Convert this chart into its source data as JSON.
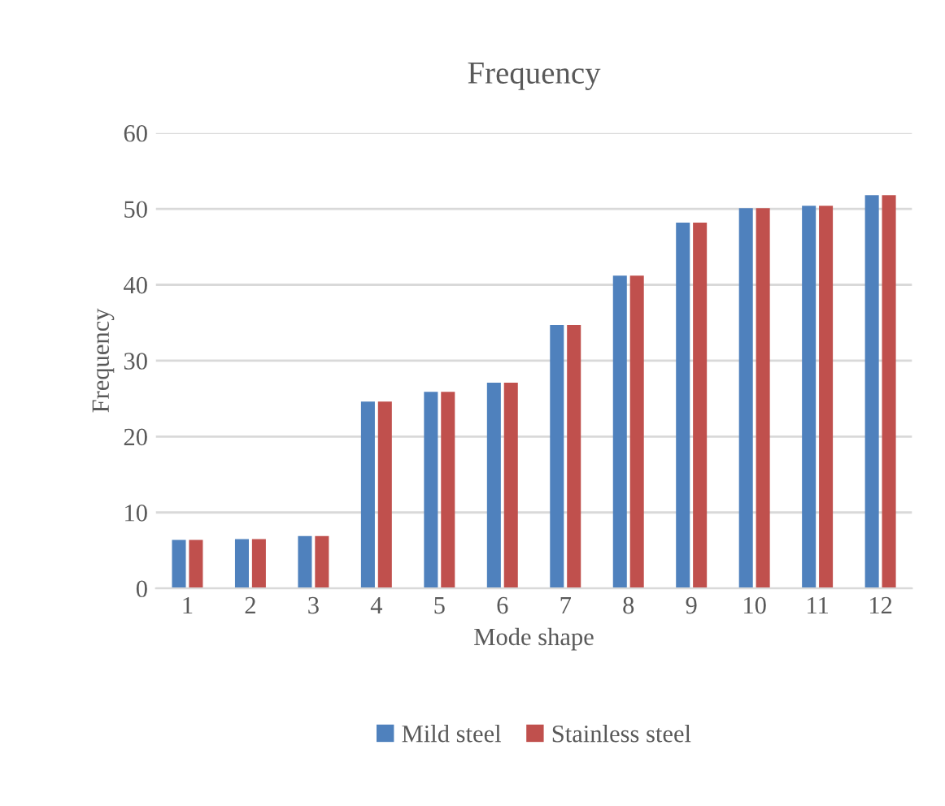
{
  "chart_data": {
    "type": "bar",
    "title": "Frequency",
    "xlabel": "Mode shape",
    "ylabel": "Frequency",
    "categories": [
      "1",
      "2",
      "3",
      "4",
      "5",
      "6",
      "7",
      "8",
      "9",
      "10",
      "11",
      "12"
    ],
    "series": [
      {
        "name": "Mild steel",
        "color": "#4f81bd",
        "values": [
          6.4,
          6.5,
          6.9,
          24.6,
          25.9,
          27.1,
          34.7,
          41.2,
          48.2,
          50.1,
          50.4,
          51.8
        ]
      },
      {
        "name": "Stainless steel",
        "color": "#c0504d",
        "values": [
          6.4,
          6.5,
          6.9,
          24.6,
          25.9,
          27.1,
          34.7,
          41.2,
          48.2,
          50.1,
          50.4,
          51.8
        ]
      }
    ],
    "ylim": [
      0,
      60
    ],
    "yticks": [
      0,
      10,
      20,
      30,
      40,
      50,
      60
    ],
    "grid": "y",
    "legend": "bottom"
  }
}
